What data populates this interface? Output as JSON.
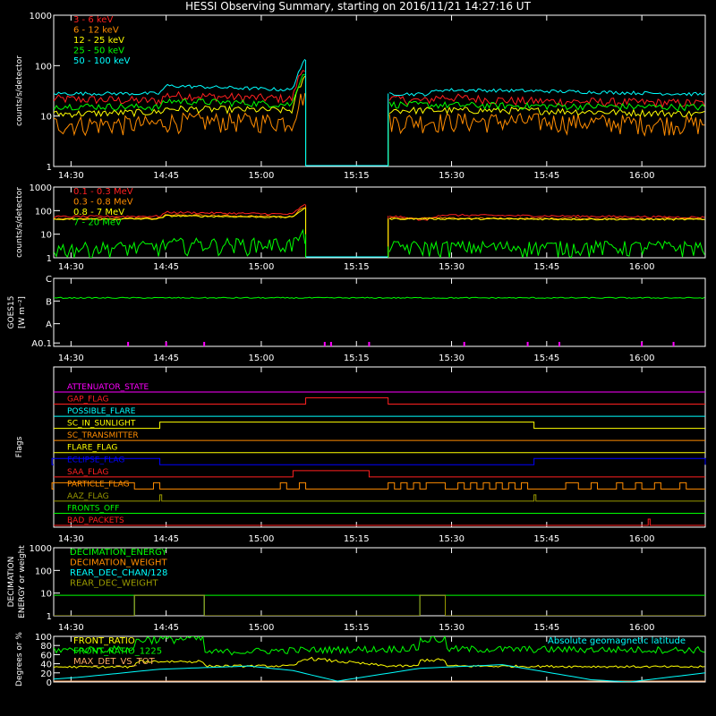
{
  "title": "HESSI Observing Summary, starting on 2016/11/21 14:27:16 UT",
  "time_ticks": [
    "14:30",
    "14:45",
    "15:00",
    "15:15",
    "15:30",
    "15:45",
    "16:00"
  ],
  "colors": {
    "axes": "#ffffff",
    "red": "#ff2020",
    "orange": "#ff8c00",
    "yellow": "#ffff00",
    "green": "#00ff00",
    "cyan": "#00ffff",
    "magenta": "#ff00ff",
    "blue": "#0000ff",
    "olive": "#999900",
    "peach": "#ffaa66"
  },
  "chart_data": [
    {
      "type": "line",
      "ylabel": "counts/s/detector",
      "yscale": "log",
      "ylim": [
        1,
        1000
      ],
      "ytick_labels": [
        "1",
        "10",
        "100",
        "1000"
      ],
      "legend": [
        "3 - 6 keV",
        "6 - 12 keV",
        "12 - 25 keV",
        "25 - 50 keV",
        "50 - 100 keV"
      ],
      "gap": [
        "15:07",
        "15:20"
      ],
      "series": [
        {
          "name": "3 - 6 keV",
          "color": "red",
          "x": [
            "14:27",
            "14:44",
            "14:45",
            "15:05",
            "15:07",
            "15:20",
            "15:26",
            "15:28",
            "15:40",
            "16:10"
          ],
          "y": [
            22,
            20,
            26,
            22,
            100,
            22,
            20,
            24,
            20,
            18
          ],
          "noise": 0.1
        },
        {
          "name": "6 - 12 keV",
          "color": "orange",
          "x": [
            "14:27",
            "14:44",
            "14:45",
            "15:05",
            "15:07",
            "15:20",
            "15:40",
            "16:10"
          ],
          "y": [
            7,
            7,
            8,
            8,
            30,
            8,
            8,
            7
          ],
          "noise": 0.22
        },
        {
          "name": "12 - 25 keV",
          "color": "yellow",
          "x": [
            "14:27",
            "14:44",
            "14:45",
            "15:05",
            "15:07",
            "15:20",
            "15:40",
            "16:10"
          ],
          "y": [
            11,
            12,
            14,
            13,
            60,
            13,
            13,
            11
          ],
          "noise": 0.08
        },
        {
          "name": "25 - 50 keV",
          "color": "green",
          "x": [
            "14:27",
            "14:44",
            "14:45",
            "15:05",
            "15:07",
            "15:20",
            "15:40",
            "16:10"
          ],
          "y": [
            16,
            15,
            20,
            17,
            80,
            17,
            16,
            15
          ],
          "noise": 0.08
        },
        {
          "name": "50 - 100 keV",
          "color": "cyan",
          "x": [
            "14:27",
            "14:44",
            "14:45",
            "15:05",
            "15:07",
            "15:20",
            "15:26",
            "15:28",
            "15:40",
            "16:10"
          ],
          "y": [
            28,
            28,
            40,
            33,
            130,
            28,
            27,
            33,
            32,
            27
          ],
          "noise": 0.04
        }
      ]
    },
    {
      "type": "line",
      "ylabel": "counts/s/detector",
      "yscale": "log",
      "ylim": [
        1,
        1000
      ],
      "ytick_labels": [
        "1",
        "10",
        "100",
        "1000"
      ],
      "legend": [
        "0.1 - 0.3 MeV",
        "0.3 - 0.8 MeV",
        "0.8 - 7 MeV",
        "7 - 20 MeV"
      ],
      "gap": [
        "15:07",
        "15:20"
      ],
      "series": [
        {
          "name": "0.1 - 0.3 MeV",
          "color": "red",
          "x": [
            "14:27",
            "14:44",
            "14:45",
            "15:05",
            "15:07",
            "15:20",
            "15:26",
            "15:28",
            "16:10"
          ],
          "y": [
            55,
            58,
            85,
            70,
            180,
            60,
            38,
            65,
            52
          ],
          "noise": 0.05
        },
        {
          "name": "0.3 - 0.8 MeV",
          "color": "orange",
          "x": [
            "14:27",
            "14:44",
            "14:45",
            "15:05",
            "15:07",
            "15:20",
            "16:10"
          ],
          "y": [
            45,
            48,
            65,
            55,
            150,
            48,
            45
          ],
          "noise": 0.04
        },
        {
          "name": "0.8 - 7 MeV",
          "color": "yellow",
          "x": [
            "14:27",
            "14:44",
            "14:45",
            "15:05",
            "15:07",
            "15:20",
            "16:10"
          ],
          "y": [
            42,
            45,
            60,
            52,
            130,
            45,
            42
          ],
          "noise": 0.04
        },
        {
          "name": "7 - 20 MeV",
          "color": "green",
          "x": [
            "14:27",
            "14:44",
            "14:45",
            "15:05",
            "15:07",
            "15:20",
            "16:10"
          ],
          "y": [
            2.5,
            3,
            4,
            4,
            10,
            3,
            3
          ],
          "noise": 0.35
        }
      ]
    },
    {
      "type": "line",
      "ylabel": "GOES15",
      "ylabel2": "[W m⁻²]",
      "ylim": [
        0,
        4
      ],
      "ytick_labels": [
        "A0.1",
        "A",
        "B",
        "C"
      ],
      "series": [
        {
          "name": "GOES15",
          "color": "green",
          "x": [
            "14:27",
            "16:10"
          ],
          "y": [
            2.85,
            2.85
          ],
          "noise": 0.01
        }
      ],
      "events_color": "magenta",
      "events": [
        "14:39",
        "14:45",
        "14:51",
        "15:10",
        "15:11",
        "15:17",
        "15:32",
        "15:42",
        "15:47",
        "16:00",
        "16:05"
      ]
    },
    {
      "type": "step",
      "ylabel": "Flags",
      "flags": [
        {
          "name": "ATTENUATOR_STATE",
          "color": "magenta",
          "on": []
        },
        {
          "name": "GAP_FLAG",
          "color": "red",
          "on": [
            [
              "15:07",
              "15:20"
            ]
          ]
        },
        {
          "name": "POSSIBLE_FLARE",
          "color": "cyan",
          "on": []
        },
        {
          "name": "SC_IN_SUNLIGHT",
          "color": "yellow",
          "on": [
            [
              "14:44",
              "15:43"
            ]
          ]
        },
        {
          "name": "SC_TRANSMITTER",
          "color": "orange",
          "on": []
        },
        {
          "name": "FLARE_FLAG",
          "color": "yellow",
          "on": []
        },
        {
          "name": "ECLIPSE_FLAG",
          "color": "blue",
          "on": [
            [
              "14:27",
              "14:44"
            ],
            [
              "15:43",
              "16:10"
            ]
          ]
        },
        {
          "name": "SAA_FLAG",
          "color": "red",
          "on": [
            [
              "15:05",
              "15:17"
            ]
          ]
        },
        {
          "name": "PARTICLE_FLAG",
          "color": "orange",
          "on": [
            [
              "14:27",
              "14:40"
            ],
            [
              "14:43",
              "14:44"
            ],
            [
              "15:03",
              "15:04"
            ],
            [
              "15:06",
              "15:07"
            ],
            [
              "15:20",
              "15:21"
            ],
            [
              "15:22",
              "15:23"
            ],
            [
              "15:24",
              "15:25"
            ],
            [
              "15:26",
              "15:29"
            ],
            [
              "15:31",
              "15:32"
            ],
            [
              "15:33",
              "15:34"
            ],
            [
              "15:35",
              "15:36"
            ],
            [
              "15:37",
              "15:38"
            ],
            [
              "15:39",
              "15:40"
            ],
            [
              "15:41",
              "15:42"
            ],
            [
              "15:48",
              "15:50"
            ],
            [
              "15:52",
              "15:53"
            ],
            [
              "15:56",
              "15:57"
            ],
            [
              "15:59",
              "16:00"
            ],
            [
              "16:02",
              "16:03"
            ],
            [
              "16:06",
              "16:07"
            ]
          ]
        },
        {
          "name": "AAZ_FLAG",
          "color": "olive",
          "on": [
            [
              "14:44",
              "14:44.3"
            ],
            [
              "15:43",
              "15:43.3"
            ]
          ]
        },
        {
          "name": "FRONTS_OFF",
          "color": "green",
          "on": []
        },
        {
          "name": "BAD_PACKETS",
          "color": "red",
          "on": [
            [
              "16:01",
              "16:01.3"
            ]
          ]
        }
      ]
    },
    {
      "type": "step",
      "ylabel": "DECIMATION",
      "ylabel2": "ENERGY or weight",
      "yscale": "log",
      "ylim": [
        1,
        1000
      ],
      "ytick_labels": [
        "1",
        "10",
        "100",
        "1000"
      ],
      "legend": [
        "DECIMATION_ENERGY",
        "DECIMATION_WEIGHT",
        "REAR_DEC_CHAN/128",
        "REAR_DEC_WEIGHT"
      ],
      "series": [
        {
          "name": "DECIMATION_ENERGY",
          "color": "green",
          "x": [
            "14:27",
            "16:10"
          ],
          "y": [
            8,
            8
          ]
        },
        {
          "name": "DECIMATION_WEIGHT",
          "color": "orange",
          "x": [
            "14:27",
            "14:40",
            "14:40",
            "14:51",
            "14:51",
            "15:25",
            "15:25",
            "15:29",
            "15:29",
            "16:10"
          ],
          "y": [
            1,
            1,
            8,
            8,
            1,
            1,
            8,
            8,
            1,
            1
          ]
        },
        {
          "name": "REAR_DEC_CHAN/128",
          "color": "cyan",
          "x": [
            "14:27",
            "14:40",
            "14:40",
            "14:51",
            "14:51",
            "15:25",
            "15:25",
            "15:29",
            "15:29",
            "16:10"
          ],
          "y": [
            1,
            1,
            8,
            8,
            1,
            1,
            8,
            8,
            1,
            1
          ]
        },
        {
          "name": "REAR_DEC_WEIGHT",
          "color": "olive",
          "x": [
            "14:27",
            "14:40",
            "14:40",
            "14:51",
            "14:51",
            "15:25",
            "15:25",
            "15:29",
            "15:29",
            "16:10"
          ],
          "y": [
            1,
            1,
            8,
            8,
            1,
            1,
            8,
            8,
            1,
            1
          ]
        }
      ]
    },
    {
      "type": "line",
      "ylabel": "Degrees or %",
      "ylim": [
        0,
        100
      ],
      "ytick_labels": [
        "0",
        "20",
        "40",
        "60",
        "80",
        "100"
      ],
      "legend": [
        "FRONT_RATIO",
        "FRONT_RATIO_1225",
        "MAX_DET_VS_TOT"
      ],
      "annotation": "Absolute geomagnetic latitude",
      "series": [
        {
          "name": "FRONT_RATIO",
          "color": "yellow",
          "x": [
            "14:27",
            "14:40",
            "14:40",
            "14:51",
            "14:51",
            "15:05",
            "15:07",
            "15:20",
            "15:25",
            "15:25",
            "15:29",
            "15:29",
            "16:10"
          ],
          "y": [
            33,
            33,
            45,
            45,
            35,
            35,
            52,
            35,
            35,
            48,
            48,
            35,
            33
          ],
          "noise": 0.06
        },
        {
          "name": "FRONT_RATIO_1225",
          "color": "green",
          "x": [
            "14:27",
            "14:40",
            "14:40",
            "14:51",
            "14:51",
            "15:07",
            "15:20",
            "15:25",
            "15:25",
            "15:29",
            "15:29",
            "16:10"
          ],
          "y": [
            70,
            72,
            93,
            95,
            65,
            70,
            72,
            75,
            92,
            95,
            72,
            70
          ],
          "noise": 0.09
        },
        {
          "name": "MAX_DET_VS_TOT",
          "color": "peach",
          "x": [
            "14:27",
            "14:40",
            "14:40",
            "14:51",
            "14:51",
            "15:07",
            "15:20",
            "15:25",
            "15:25",
            "15:29",
            "15:29",
            "16:10"
          ],
          "y": [
            2,
            2,
            2,
            2,
            2,
            2,
            2,
            2,
            2,
            2,
            2,
            2
          ],
          "noise": 0
        },
        {
          "name": "Absolute geomagnetic latitude",
          "color": "cyan",
          "x": [
            "14:27",
            "14:31",
            "14:44",
            "14:58",
            "15:05",
            "15:12",
            "15:25",
            "15:38",
            "15:52",
            "15:58",
            "16:04",
            "16:10"
          ],
          "y": [
            6,
            10,
            28,
            35,
            25,
            2,
            30,
            38,
            5,
            0,
            10,
            20
          ],
          "noise": 0,
          "smooth": true
        }
      ]
    }
  ]
}
